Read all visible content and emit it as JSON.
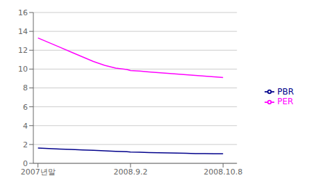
{
  "chart_data": {
    "type": "line",
    "x": [
      0,
      0.12,
      0.24,
      0.36,
      0.48,
      0.6,
      0.72,
      0.84,
      0.96,
      1.0,
      1.1,
      1.2,
      1.3,
      1.4,
      1.5,
      1.6,
      1.7,
      1.8,
      1.9,
      2.0
    ],
    "series": [
      {
        "name": "PBR",
        "color": "#00008B",
        "values": [
          1.62,
          1.57,
          1.52,
          1.47,
          1.42,
          1.38,
          1.33,
          1.28,
          1.23,
          1.2,
          1.18,
          1.15,
          1.12,
          1.1,
          1.08,
          1.06,
          1.04,
          1.03,
          1.02,
          1.01
        ]
      },
      {
        "name": "PER",
        "color": "#FF00FF",
        "values": [
          13.3,
          12.8,
          12.3,
          11.8,
          11.3,
          10.8,
          10.4,
          10.1,
          9.95,
          9.85,
          9.78,
          9.7,
          9.62,
          9.55,
          9.48,
          9.4,
          9.32,
          9.25,
          9.18,
          9.1
        ]
      }
    ],
    "xlim": [
      -0.05,
      2.15
    ],
    "xticks": [
      {
        "value": 0,
        "label": "2007년말"
      },
      {
        "value": 1,
        "label": "2008.9.2"
      },
      {
        "value": 2,
        "label": "2008.10.8"
      }
    ],
    "ylim": [
      0,
      16
    ],
    "yticks": [
      0,
      2,
      4,
      6,
      8,
      10,
      12,
      14,
      16
    ],
    "grid": true,
    "legend": "right"
  }
}
